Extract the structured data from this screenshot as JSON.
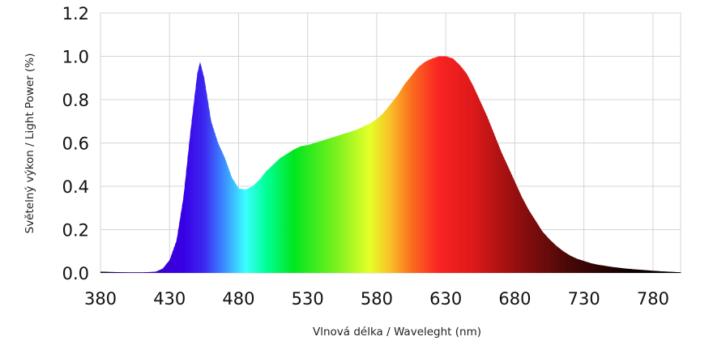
{
  "chart_data": {
    "type": "area",
    "title": "",
    "xlabel": "Vlnová délka / Waveleght (nm)",
    "ylabel": "Světelný výkon / Light Power (%)",
    "xlim": [
      380,
      800
    ],
    "ylim": [
      0,
      1.2
    ],
    "xticks": [
      380,
      430,
      480,
      530,
      580,
      630,
      680,
      730,
      780
    ],
    "yticks": [
      "0.0",
      "0.2",
      "0.4",
      "0.6",
      "0.8",
      "1.0",
      "1.2"
    ],
    "grid": true,
    "fill": "spectral wavelength colors",
    "x": [
      380,
      390,
      400,
      410,
      415,
      420,
      425,
      430,
      435,
      440,
      445,
      450,
      452,
      455,
      460,
      465,
      470,
      475,
      480,
      485,
      490,
      495,
      500,
      505,
      510,
      515,
      520,
      525,
      530,
      535,
      540,
      545,
      550,
      555,
      560,
      565,
      570,
      575,
      580,
      585,
      590,
      595,
      600,
      605,
      610,
      615,
      620,
      625,
      630,
      635,
      640,
      645,
      650,
      655,
      660,
      665,
      670,
      675,
      680,
      685,
      690,
      695,
      700,
      705,
      710,
      715,
      720,
      725,
      730,
      735,
      740,
      750,
      760,
      770,
      780,
      790,
      800
    ],
    "y": [
      0.006,
      0.004,
      0.003,
      0.003,
      0.004,
      0.006,
      0.02,
      0.06,
      0.15,
      0.35,
      0.65,
      0.92,
      0.975,
      0.9,
      0.7,
      0.6,
      0.53,
      0.44,
      0.39,
      0.385,
      0.4,
      0.43,
      0.47,
      0.5,
      0.53,
      0.55,
      0.57,
      0.585,
      0.59,
      0.6,
      0.61,
      0.62,
      0.63,
      0.64,
      0.65,
      0.66,
      0.675,
      0.69,
      0.71,
      0.74,
      0.78,
      0.82,
      0.87,
      0.91,
      0.95,
      0.975,
      0.99,
      1.0,
      1.0,
      0.99,
      0.96,
      0.92,
      0.86,
      0.79,
      0.72,
      0.64,
      0.56,
      0.49,
      0.42,
      0.35,
      0.29,
      0.24,
      0.19,
      0.155,
      0.125,
      0.1,
      0.08,
      0.065,
      0.055,
      0.045,
      0.038,
      0.028,
      0.02,
      0.015,
      0.01,
      0.006,
      0.003
    ]
  }
}
